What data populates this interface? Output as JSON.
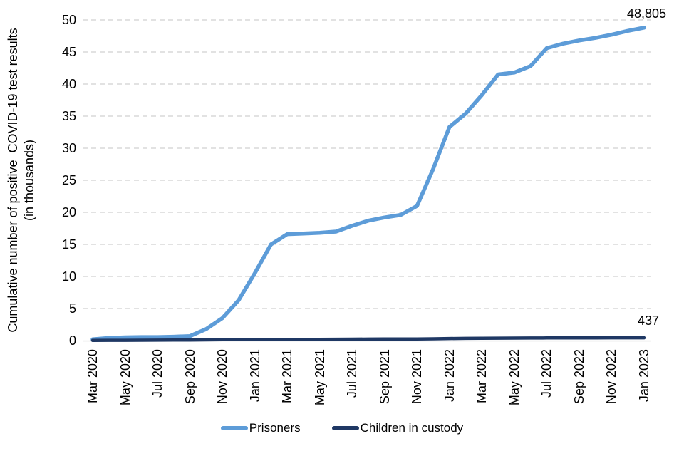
{
  "chart_data": {
    "type": "line",
    "title": "",
    "ylabel_line1": "Cumulative number of positive  COVID-19 test results",
    "ylabel_line2": "(in thousands)",
    "ylim": [
      0,
      50
    ],
    "ytick_step": 5,
    "y_tick_labels": [
      "0",
      "5",
      "10",
      "15",
      "20",
      "25",
      "30",
      "35",
      "40",
      "45",
      "50"
    ],
    "x_tick_labels": [
      "Mar 2020",
      "May 2020",
      "Jul 2020",
      "Sep 2020",
      "Nov 2020",
      "Jan 2021",
      "Mar 2021",
      "May 2021",
      "Jul 2021",
      "Sep 2021",
      "Nov 2021",
      "Jan 2022",
      "Mar 2022",
      "May 2022",
      "Jul 2022",
      "Sep 2022",
      "Nov 2022",
      "Jan 2023"
    ],
    "months": [
      "Mar 2020",
      "Apr 2020",
      "May 2020",
      "Jun 2020",
      "Jul 2020",
      "Aug 2020",
      "Sep 2020",
      "Oct 2020",
      "Nov 2020",
      "Dec 2020",
      "Jan 2021",
      "Feb 2021",
      "Mar 2021",
      "Apr 2021",
      "May 2021",
      "Jun 2021",
      "Jul 2021",
      "Aug 2021",
      "Sep 2021",
      "Oct 2021",
      "Nov 2021",
      "Dec 2021",
      "Jan 2022",
      "Feb 2022",
      "Mar 2022",
      "Apr 2022",
      "May 2022",
      "Jun 2022",
      "Jul 2022",
      "Aug 2022",
      "Sep 2022",
      "Oct 2022",
      "Nov 2022",
      "Dec 2022",
      "Jan 2023"
    ],
    "series": [
      {
        "name": "Prisoners",
        "color": "#5d9cd8",
        "line_width": 5.5,
        "end_label": "48,805",
        "values": [
          0.2,
          0.4,
          0.5,
          0.55,
          0.55,
          0.6,
          0.7,
          1.8,
          3.5,
          6.3,
          10.5,
          15.0,
          16.6,
          16.7,
          16.8,
          17.0,
          17.9,
          18.7,
          19.2,
          19.6,
          21.0,
          26.8,
          33.3,
          35.4,
          38.3,
          41.5,
          41.8,
          42.8,
          45.6,
          46.3,
          46.8,
          47.2,
          47.7,
          48.3,
          48.805
        ]
      },
      {
        "name": "Children in custody",
        "color": "#1f3864",
        "line_width": 4.5,
        "end_label": "437",
        "values": [
          0.02,
          0.04,
          0.05,
          0.06,
          0.07,
          0.08,
          0.09,
          0.11,
          0.13,
          0.15,
          0.17,
          0.18,
          0.19,
          0.2,
          0.2,
          0.21,
          0.22,
          0.23,
          0.24,
          0.25,
          0.26,
          0.28,
          0.32,
          0.34,
          0.36,
          0.38,
          0.39,
          0.4,
          0.41,
          0.41,
          0.42,
          0.42,
          0.43,
          0.43,
          0.437
        ]
      }
    ],
    "grid": {
      "style": "dashed",
      "direction": "horizontal",
      "color": "#d9d9d9",
      "axis_line_color": "#d9d9d9"
    },
    "legend_position": "bottom",
    "text_color": "#000000"
  }
}
